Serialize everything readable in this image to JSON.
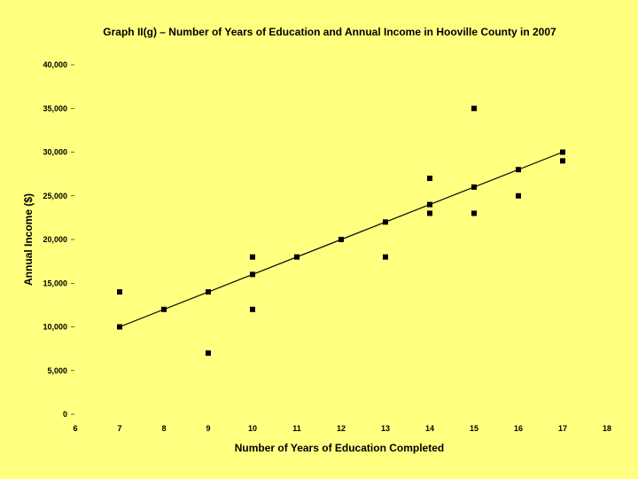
{
  "chart_data": {
    "type": "scatter",
    "title": "Graph II(g) – Number of Years of Education and Annual Income in Hooville County in 2007",
    "xlabel": "Number of Years of Education Completed",
    "ylabel": "Annual Income ($)",
    "xlim": [
      6,
      18
    ],
    "ylim": [
      0,
      40000
    ],
    "x_ticks": [
      "6",
      "7",
      "8",
      "9",
      "10",
      "11",
      "12",
      "13",
      "14",
      "15",
      "16",
      "17",
      "18"
    ],
    "y_ticks": [
      "0",
      "5,000",
      "10,000",
      "15,000",
      "20,000",
      "25,000",
      "30,000",
      "35,000",
      "40,000"
    ],
    "grid": false,
    "points": [
      {
        "x": 7,
        "y": 14000
      },
      {
        "x": 7,
        "y": 10000
      },
      {
        "x": 8,
        "y": 12000
      },
      {
        "x": 9,
        "y": 14000
      },
      {
        "x": 9,
        "y": 7000
      },
      {
        "x": 10,
        "y": 18000
      },
      {
        "x": 10,
        "y": 16000
      },
      {
        "x": 10,
        "y": 12000
      },
      {
        "x": 11,
        "y": 18000
      },
      {
        "x": 12,
        "y": 20000
      },
      {
        "x": 13,
        "y": 22000
      },
      {
        "x": 13,
        "y": 18000
      },
      {
        "x": 14,
        "y": 27000
      },
      {
        "x": 14,
        "y": 24000
      },
      {
        "x": 14,
        "y": 23000
      },
      {
        "x": 15,
        "y": 35000
      },
      {
        "x": 15,
        "y": 26000
      },
      {
        "x": 15,
        "y": 23000
      },
      {
        "x": 16,
        "y": 28000
      },
      {
        "x": 16,
        "y": 25000
      },
      {
        "x": 17,
        "y": 30000
      },
      {
        "x": 17,
        "y": 29000
      }
    ],
    "trendline": {
      "x": [
        7,
        17
      ],
      "y": [
        10000,
        30000
      ]
    },
    "colors": {
      "background": "#ffff80",
      "marks": "#000000"
    }
  }
}
